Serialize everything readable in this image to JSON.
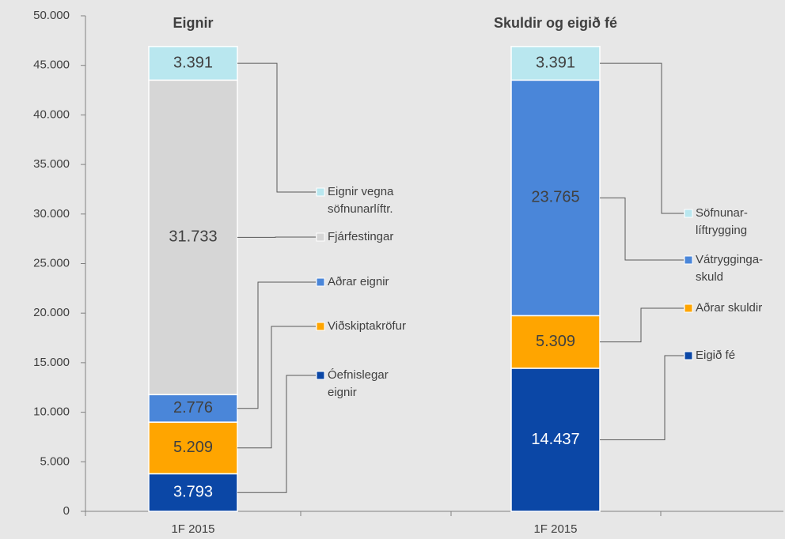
{
  "chart_data": [
    {
      "type": "bar",
      "stacked": true,
      "title": "Eignir",
      "categories": [
        "1F 2015"
      ],
      "ylim": [
        0,
        50000
      ],
      "yticks": [
        0,
        {
          "value": 5000,
          "label": "5.000"
        },
        {
          "value": 10000,
          "label": "10.000"
        },
        {
          "value": 15000,
          "label": "15.000"
        },
        {
          "value": 20000,
          "label": "20.000"
        },
        {
          "value": 25000,
          "label": "25.000"
        },
        {
          "value": 30000,
          "label": "30.000"
        },
        {
          "value": 35000,
          "label": "35.000"
        },
        {
          "value": 40000,
          "label": "40.000"
        },
        {
          "value": 45000,
          "label": "45.000"
        },
        {
          "value": 50000,
          "label": "50.000"
        }
      ],
      "series": [
        {
          "name": "Óefnislegar\neignir",
          "color": "#0b47a6",
          "values": [
            3793
          ],
          "value_labels": [
            "3.793"
          ]
        },
        {
          "name": "Viðskiptakröfur",
          "color": "#ffa500",
          "values": [
            5209
          ],
          "value_labels": [
            "5.209"
          ]
        },
        {
          "name": "Aðrar eignir",
          "color": "#4a86d9",
          "values": [
            2776
          ],
          "value_labels": [
            "2.776"
          ]
        },
        {
          "name": "Fjárfestingar",
          "color": "#d6d6d6",
          "values": [
            31733
          ],
          "value_labels": [
            "31.733"
          ]
        },
        {
          "name": "Eignir vegna\nsöfnunarlíftr.",
          "color": "#b9e7ef",
          "values": [
            3391
          ],
          "value_labels": [
            "3.391"
          ]
        }
      ]
    },
    {
      "type": "bar",
      "stacked": true,
      "title": "Skuldir og eigið fé",
      "categories": [
        "1F 2015"
      ],
      "ylim": [
        0,
        50000
      ],
      "series": [
        {
          "name": "Eigið fé",
          "color": "#0b47a6",
          "values": [
            14437
          ],
          "value_labels": [
            "14.437"
          ]
        },
        {
          "name": "Aðrar skuldir",
          "color": "#ffa500",
          "values": [
            5309
          ],
          "value_labels": [
            "5.309"
          ]
        },
        {
          "name": "Vátrygginga-\nskuld",
          "color": "#4a86d9",
          "values": [
            23765
          ],
          "value_labels": [
            "23.765"
          ]
        },
        {
          "name": "Söfnunar-\nlíftrygging",
          "color": "#b9e7ef",
          "values": [
            3391
          ],
          "value_labels": [
            "3.391"
          ]
        }
      ]
    }
  ]
}
